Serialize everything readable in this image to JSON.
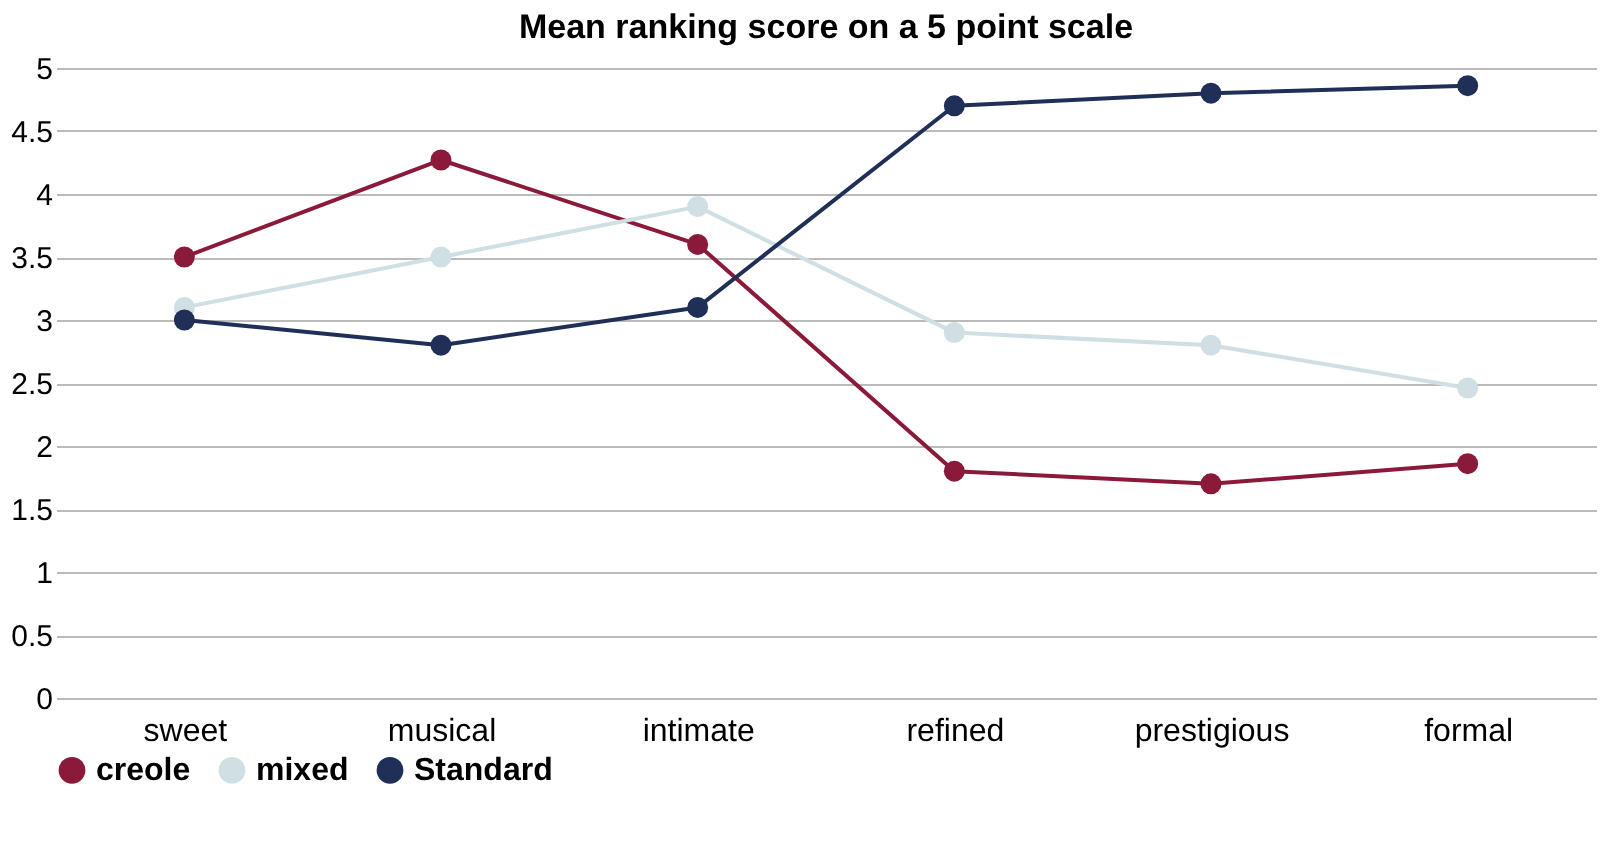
{
  "chart_data": {
    "type": "line",
    "title": "Mean ranking score on a 5 point scale",
    "categories": [
      "sweet",
      "musical",
      "intimate",
      "refined",
      "prestigious",
      "formal"
    ],
    "series": [
      {
        "name": "creole",
        "color": "#8b1a3a",
        "values": [
          3.5,
          4.27,
          3.6,
          1.8,
          1.7,
          1.86
        ]
      },
      {
        "name": "mixed",
        "color": "#cfdfe3",
        "values": [
          3.1,
          3.5,
          3.9,
          2.9,
          2.8,
          2.46
        ]
      },
      {
        "name": "Standard",
        "color": "#1f2f57",
        "values": [
          3.0,
          2.8,
          3.1,
          4.7,
          4.8,
          4.86
        ]
      }
    ],
    "ylim": [
      0,
      5
    ],
    "yticks": [
      0,
      0.5,
      1,
      1.5,
      2,
      2.5,
      3,
      3.5,
      4,
      4.5,
      5
    ],
    "grid": "y",
    "legend": "bottom",
    "marker": "circle",
    "line_style": "solid"
  }
}
